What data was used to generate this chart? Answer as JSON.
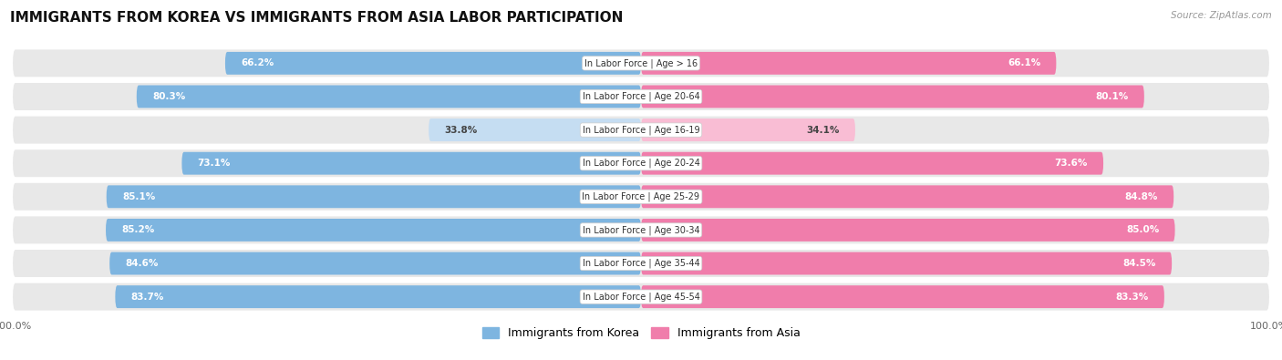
{
  "title": "IMMIGRANTS FROM KOREA VS IMMIGRANTS FROM ASIA LABOR PARTICIPATION",
  "source": "Source: ZipAtlas.com",
  "categories": [
    "In Labor Force | Age > 16",
    "In Labor Force | Age 20-64",
    "In Labor Force | Age 16-19",
    "In Labor Force | Age 20-24",
    "In Labor Force | Age 25-29",
    "In Labor Force | Age 30-34",
    "In Labor Force | Age 35-44",
    "In Labor Force | Age 45-54"
  ],
  "korea_values": [
    66.2,
    80.3,
    33.8,
    73.1,
    85.1,
    85.2,
    84.6,
    83.7
  ],
  "asia_values": [
    66.1,
    80.1,
    34.1,
    73.6,
    84.8,
    85.0,
    84.5,
    83.3
  ],
  "korea_color": "#7EB5E0",
  "korea_color_light": "#C5DDF2",
  "asia_color": "#F07DAB",
  "asia_color_light": "#F9BDD4",
  "row_bg_color": "#E8E8E8",
  "max_value": 100.0,
  "legend_korea": "Immigrants from Korea",
  "legend_asia": "Immigrants from Asia",
  "title_fontsize": 11,
  "bar_label_fontsize": 7.5,
  "category_fontsize": 7.0
}
